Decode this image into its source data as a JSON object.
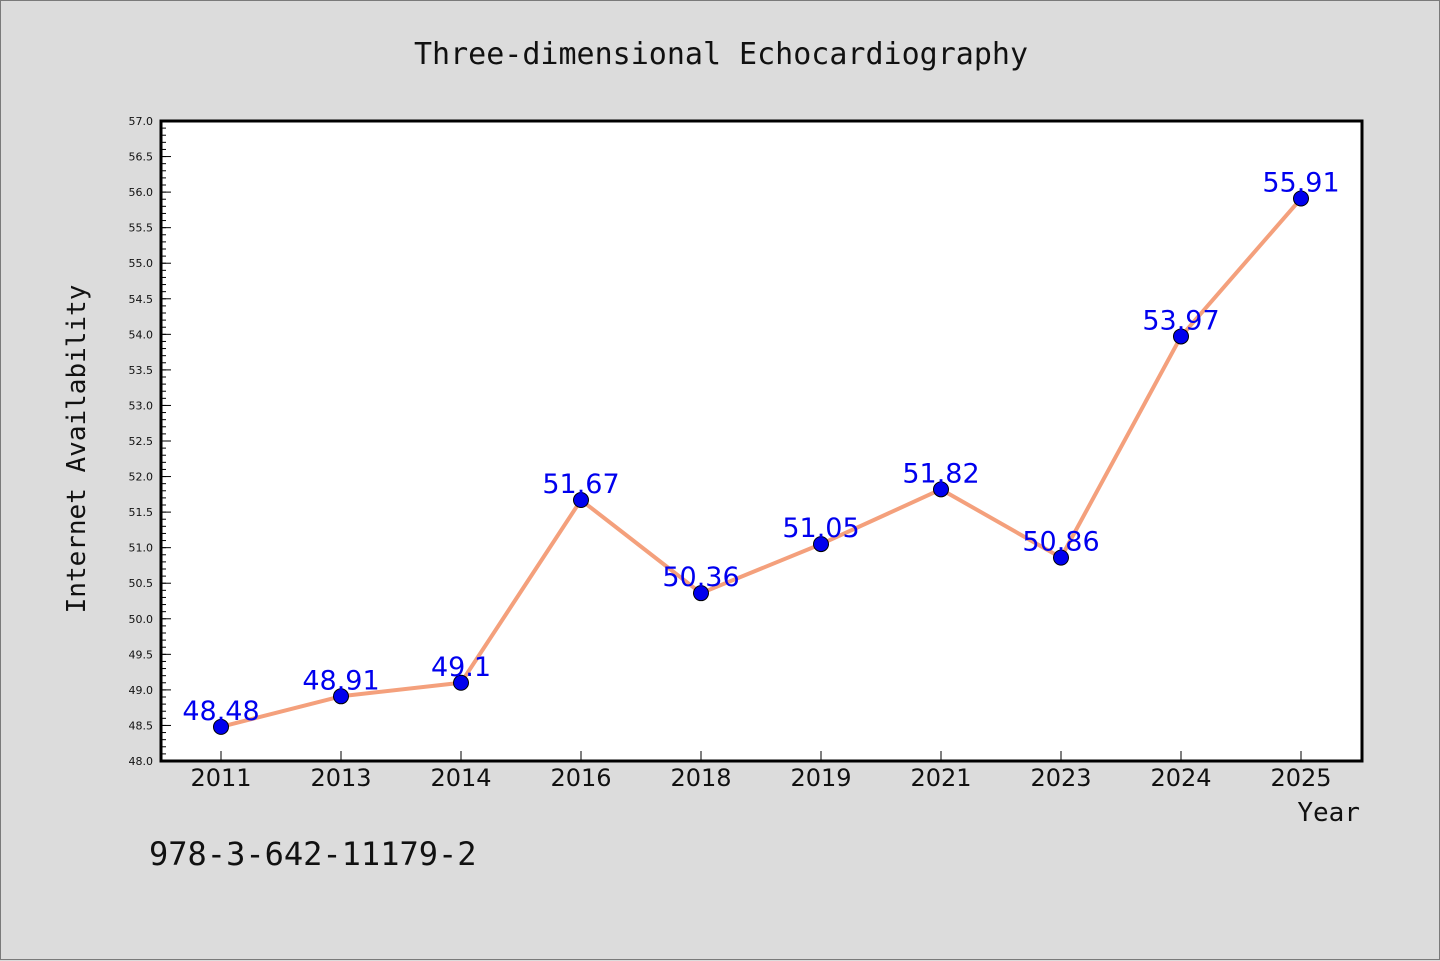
{
  "chart_data": {
    "type": "line",
    "title": "Three-dimensional Echocardiography",
    "xlabel": "Year",
    "ylabel": "Internet Availability",
    "categories": [
      "2011",
      "2013",
      "2014",
      "2016",
      "2018",
      "2019",
      "2021",
      "2023",
      "2024",
      "2025"
    ],
    "values": [
      48.48,
      48.91,
      49.1,
      51.67,
      50.36,
      51.05,
      51.82,
      50.86,
      53.97,
      55.91
    ],
    "data_labels": [
      "48.48",
      "48.91",
      "49.1",
      "51.67",
      "50.36",
      "51.05",
      "51.82",
      "50.86",
      "53.97",
      "55.91"
    ],
    "ylim": [
      48.0,
      57.0
    ],
    "yticks": [
      "48.0",
      "48.5",
      "49.0",
      "49.5",
      "50.0",
      "50.5",
      "51.0",
      "51.5",
      "52.0",
      "52.5",
      "53.0",
      "53.5",
      "54.0",
      "54.5",
      "55.0",
      "55.5",
      "56.0",
      "56.5",
      "57.0"
    ],
    "grid": false,
    "line_color": "#f4a07c",
    "marker_color": "#0000ee",
    "label_color": "#0000ee"
  },
  "footnote": "978-3-642-11179-2"
}
